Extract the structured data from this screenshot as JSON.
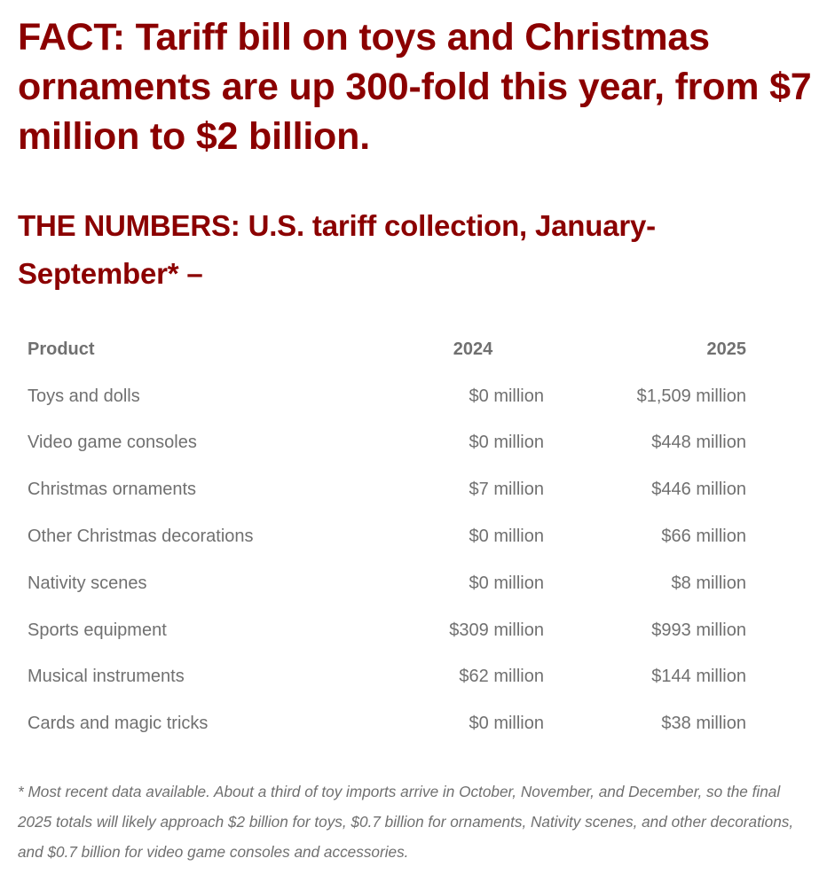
{
  "headline": "FACT: Tariff bill on toys and Christmas ornaments are up 300-fold this year, from $7 million to $2 billion.",
  "subheadline": "THE NUMBERS: U.S. tariff collection, January-September* –",
  "table": {
    "headers": {
      "product": "Product",
      "y2024": "2024",
      "y2025": "2025"
    },
    "rows": [
      {
        "product": "Toys and dolls",
        "y2024": "$0 million",
        "y2025": "$1,509 million"
      },
      {
        "product": "Video game consoles",
        "y2024": "$0 million",
        "y2025": "$448 million"
      },
      {
        "product": "Christmas ornaments",
        "y2024": "$7 million",
        "y2025": "$446 million"
      },
      {
        "product": "Other Christmas decorations",
        "y2024": "$0 million",
        "y2025": "$66 million"
      },
      {
        "product": "Nativity scenes",
        "y2024": "$0 million",
        "y2025": "$8 million"
      },
      {
        "product": "Sports equipment",
        "y2024": "$309 million",
        "y2025": "$993 million"
      },
      {
        "product": "Musical instruments",
        "y2024": "$62 million",
        "y2025": "$144 million"
      },
      {
        "product": "Cards and magic tricks",
        "y2024": "$0 million",
        "y2025": "$38 million"
      }
    ]
  },
  "footnote": "* Most recent data available. About a third of toy imports arrive in October, November, and December, so the final 2025 totals will likely approach $2 billion for toys, $0.7 billion for ornaments, Nativity scenes, and other decorations, and $0.7 billion for video game consoles and accessories.",
  "colors": {
    "heading": "#8b0000",
    "body_text": "#707070",
    "background": "#ffffff"
  }
}
